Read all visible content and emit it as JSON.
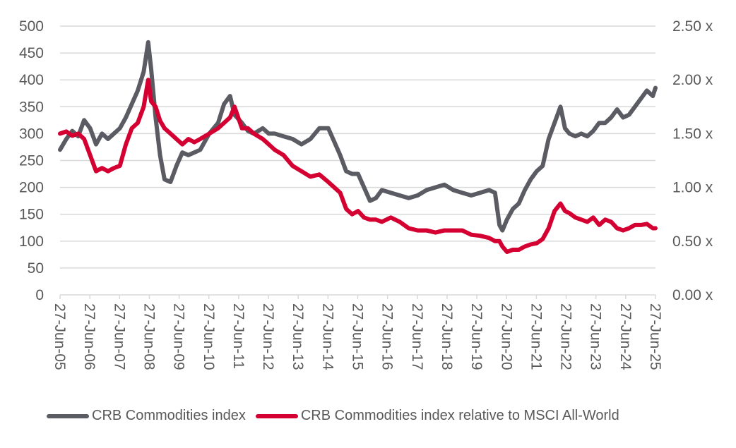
{
  "chart_data": {
    "type": "line",
    "title": "",
    "xlabel": "",
    "ylabel": "",
    "y_left": {
      "range": [
        0,
        500
      ],
      "ticks": [
        "0",
        "50",
        "100",
        "150",
        "200",
        "250",
        "300",
        "350",
        "400",
        "450",
        "500"
      ]
    },
    "y_right": {
      "range": [
        0,
        2.5
      ],
      "ticks": [
        "0.00 x",
        "0.50 x",
        "1.00 x",
        "1.50 x",
        "2.00 x",
        "2.50 x"
      ]
    },
    "x_ticks": [
      "27-Jun-05",
      "27-Jun-06",
      "27-Jun-07",
      "27-Jun-08",
      "27-Jun-09",
      "27-Jun-10",
      "27-Jun-11",
      "27-Jun-12",
      "27-Jun-13",
      "27-Jun-14",
      "27-Jun-15",
      "27-Jun-16",
      "27-Jun-17",
      "27-Jun-18",
      "27-Jun-19",
      "27-Jun-20",
      "27-Jun-21",
      "27-Jun-22",
      "27-Jun-23",
      "27-Jun-24",
      "27-Jun-25"
    ],
    "x_range_years": [
      2005.49,
      2025.49
    ],
    "grid": true,
    "legend_position": "bottom",
    "series": [
      {
        "name": "CRB Commodities index",
        "axis": "left",
        "color": "#5b5b63",
        "x": [
          2005.49,
          2005.7,
          2005.9,
          2006.1,
          2006.3,
          2006.5,
          2006.7,
          2006.9,
          2007.1,
          2007.3,
          2007.5,
          2007.7,
          2007.9,
          2008.1,
          2008.3,
          2008.45,
          2008.55,
          2008.7,
          2008.85,
          2009.0,
          2009.2,
          2009.4,
          2009.6,
          2009.8,
          2010.0,
          2010.2,
          2010.5,
          2010.8,
          2011.0,
          2011.2,
          2011.35,
          2011.6,
          2011.8,
          2012.0,
          2012.3,
          2012.5,
          2012.7,
          2013.0,
          2013.3,
          2013.6,
          2013.9,
          2014.2,
          2014.5,
          2014.7,
          2014.9,
          2015.1,
          2015.3,
          2015.5,
          2015.7,
          2015.9,
          2016.1,
          2016.3,
          2016.6,
          2016.9,
          2017.2,
          2017.5,
          2017.8,
          2018.1,
          2018.4,
          2018.7,
          2019.0,
          2019.3,
          2019.6,
          2019.9,
          2020.1,
          2020.25,
          2020.35,
          2020.5,
          2020.7,
          2020.9,
          2021.1,
          2021.3,
          2021.5,
          2021.7,
          2021.9,
          2022.1,
          2022.3,
          2022.45,
          2022.6,
          2022.8,
          2023.0,
          2023.2,
          2023.4,
          2023.6,
          2023.8,
          2024.0,
          2024.2,
          2024.4,
          2024.6,
          2024.8,
          2025.0,
          2025.2,
          2025.4,
          2025.49
        ],
        "values": [
          270,
          290,
          305,
          295,
          325,
          310,
          280,
          300,
          290,
          300,
          310,
          330,
          355,
          380,
          415,
          470,
          420,
          330,
          260,
          215,
          210,
          240,
          265,
          260,
          265,
          270,
          300,
          320,
          355,
          370,
          335,
          320,
          305,
          300,
          310,
          300,
          300,
          295,
          290,
          280,
          290,
          310,
          310,
          285,
          260,
          230,
          225,
          225,
          200,
          175,
          180,
          195,
          190,
          185,
          180,
          185,
          195,
          200,
          205,
          195,
          190,
          185,
          190,
          195,
          190,
          130,
          120,
          140,
          160,
          170,
          195,
          215,
          230,
          240,
          290,
          320,
          350,
          310,
          300,
          295,
          300,
          295,
          305,
          320,
          320,
          330,
          345,
          330,
          335,
          350,
          365,
          380,
          370,
          385
        ]
      },
      {
        "name": "CRB Commodities index relative to MSCI All-World",
        "axis": "right",
        "color": "#d50032",
        "x": [
          2005.49,
          2005.7,
          2005.9,
          2006.1,
          2006.3,
          2006.5,
          2006.7,
          2006.9,
          2007.1,
          2007.3,
          2007.5,
          2007.7,
          2007.9,
          2008.1,
          2008.3,
          2008.45,
          2008.55,
          2008.7,
          2008.85,
          2009.0,
          2009.2,
          2009.4,
          2009.6,
          2009.8,
          2010.0,
          2010.2,
          2010.5,
          2010.8,
          2011.0,
          2011.2,
          2011.35,
          2011.6,
          2011.8,
          2012.0,
          2012.3,
          2012.5,
          2012.7,
          2013.0,
          2013.3,
          2013.6,
          2013.9,
          2014.2,
          2014.5,
          2014.7,
          2014.9,
          2015.1,
          2015.3,
          2015.5,
          2015.7,
          2015.9,
          2016.1,
          2016.3,
          2016.6,
          2016.9,
          2017.2,
          2017.5,
          2017.8,
          2018.1,
          2018.4,
          2018.7,
          2019.0,
          2019.3,
          2019.6,
          2019.9,
          2020.1,
          2020.25,
          2020.35,
          2020.5,
          2020.7,
          2020.9,
          2021.1,
          2021.3,
          2021.5,
          2021.7,
          2021.9,
          2022.1,
          2022.3,
          2022.45,
          2022.6,
          2022.8,
          2023.0,
          2023.2,
          2023.4,
          2023.6,
          2023.8,
          2024.0,
          2024.2,
          2024.4,
          2024.6,
          2024.8,
          2025.0,
          2025.2,
          2025.4,
          2025.49
        ],
        "values": [
          1.5,
          1.52,
          1.48,
          1.5,
          1.45,
          1.3,
          1.15,
          1.18,
          1.15,
          1.18,
          1.2,
          1.4,
          1.55,
          1.6,
          1.75,
          2.0,
          1.8,
          1.75,
          1.62,
          1.55,
          1.5,
          1.45,
          1.4,
          1.45,
          1.42,
          1.45,
          1.5,
          1.55,
          1.6,
          1.65,
          1.75,
          1.55,
          1.55,
          1.5,
          1.45,
          1.4,
          1.35,
          1.3,
          1.2,
          1.15,
          1.1,
          1.12,
          1.05,
          1.0,
          0.95,
          0.8,
          0.75,
          0.78,
          0.72,
          0.7,
          0.7,
          0.68,
          0.72,
          0.68,
          0.62,
          0.6,
          0.6,
          0.58,
          0.6,
          0.6,
          0.6,
          0.56,
          0.55,
          0.53,
          0.5,
          0.5,
          0.45,
          0.4,
          0.42,
          0.42,
          0.45,
          0.47,
          0.48,
          0.52,
          0.62,
          0.78,
          0.85,
          0.78,
          0.76,
          0.72,
          0.7,
          0.68,
          0.72,
          0.65,
          0.7,
          0.68,
          0.62,
          0.6,
          0.62,
          0.65,
          0.65,
          0.66,
          0.62,
          0.62
        ]
      }
    ]
  }
}
